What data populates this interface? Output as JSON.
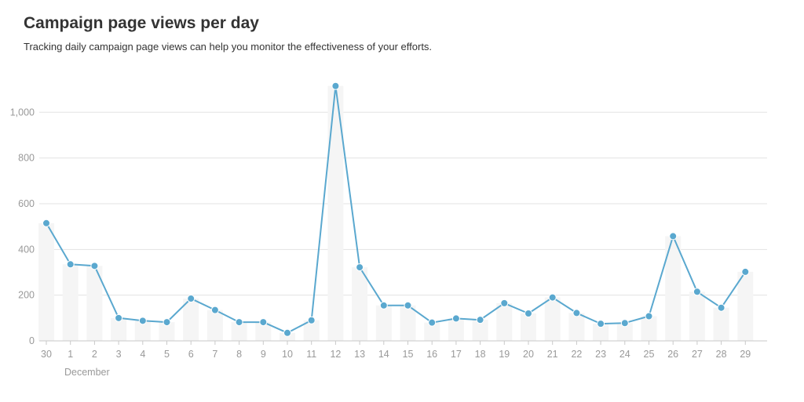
{
  "header": {
    "title": "Campaign page views per day",
    "subtitle": "Tracking daily campaign page views can help you monitor the effectiveness of your efforts."
  },
  "colors": {
    "line": "#5aa8cf",
    "bar": "#f5f5f5",
    "grid": "#e3e3e3",
    "axis": "#c9c9c9",
    "tick_text": "#999999"
  },
  "chart_data": {
    "type": "line",
    "title": "Campaign page views per day",
    "subtitle": "Tracking daily campaign page views can help you monitor the effectiveness of your efforts.",
    "categories": [
      "30",
      "1",
      "2",
      "3",
      "4",
      "5",
      "6",
      "7",
      "8",
      "9",
      "10",
      "11",
      "12",
      "13",
      "14",
      "15",
      "16",
      "17",
      "18",
      "19",
      "20",
      "21",
      "22",
      "23",
      "24",
      "25",
      "26",
      "27",
      "28",
      "29"
    ],
    "month_label": "December",
    "series": [
      {
        "values": [
          515,
          335,
          328,
          100,
          88,
          82,
          185,
          135,
          82,
          82,
          35,
          90,
          1115,
          322,
          155,
          155,
          80,
          98,
          92,
          165,
          120,
          190,
          122,
          75,
          78,
          108,
          458,
          215,
          145,
          302
        ]
      }
    ],
    "bars": [
      515,
      335,
      328,
      100,
      88,
      82,
      185,
      135,
      82,
      82,
      35,
      90,
      1115,
      322,
      155,
      155,
      80,
      98,
      92,
      165,
      120,
      190,
      122,
      75,
      78,
      108,
      458,
      215,
      145,
      302
    ],
    "yticks": [
      0,
      200,
      400,
      600,
      800,
      1000
    ],
    "ytick_labels": [
      "0",
      "200",
      "400",
      "600",
      "800",
      "1,000"
    ],
    "ylim": [
      0,
      1200
    ],
    "grid": true,
    "legend": "none"
  }
}
